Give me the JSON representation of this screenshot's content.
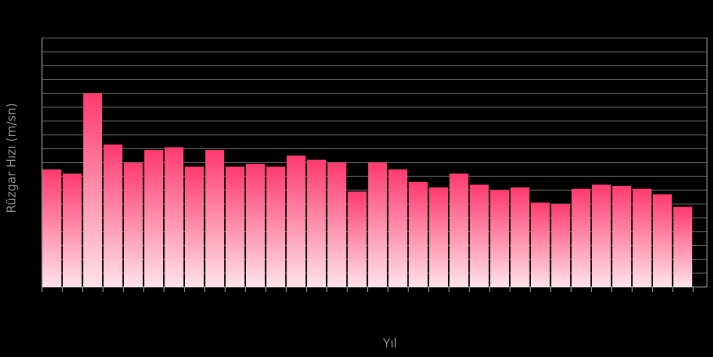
{
  "chart_data": {
    "type": "bar",
    "y_label": "Rüzgar Hızı (m/sn)",
    "x_label": "Yıl",
    "categories": [
      null,
      null,
      null,
      null,
      null,
      null,
      null,
      null,
      null,
      null,
      null,
      null,
      null,
      null,
      null,
      null,
      null,
      null,
      null,
      null,
      null,
      null,
      null,
      null,
      null,
      null,
      null,
      null,
      null,
      null,
      null,
      null
    ],
    "values": [
      8.5,
      8.2,
      14.0,
      10.3,
      9.0,
      9.9,
      10.1,
      8.7,
      9.9,
      8.7,
      8.9,
      8.7,
      9.5,
      9.2,
      9.0,
      6.9,
      9.0,
      8.5,
      7.6,
      7.2,
      8.2,
      7.4,
      7.0,
      7.2,
      6.1,
      6.0,
      7.1,
      7.4,
      7.3,
      7.1,
      6.7,
      5.8
    ],
    "color": "#ff3a6e",
    "gradient_end": "#ffe3eb",
    "ylim": [
      0,
      18
    ],
    "yticks": [
      0,
      1,
      2,
      3,
      4,
      5,
      6,
      7,
      8,
      9,
      10,
      11,
      12,
      13,
      14,
      15,
      16,
      17,
      18
    ],
    "grid": true
  }
}
